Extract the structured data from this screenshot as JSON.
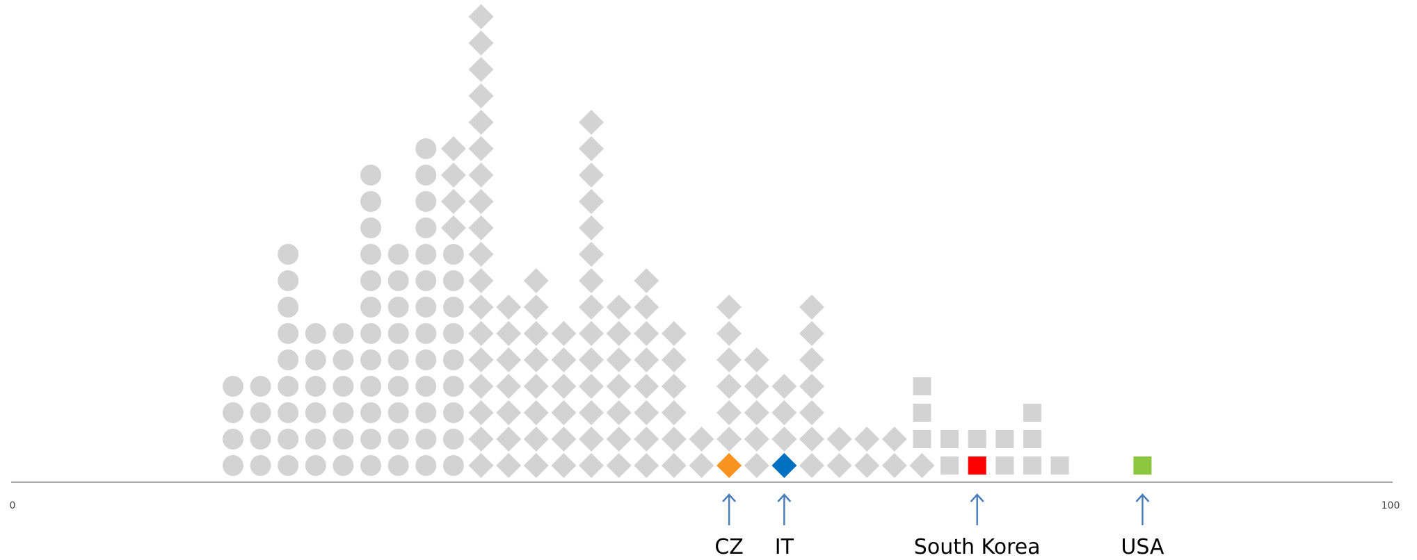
{
  "chart_data": {
    "type": "scatter",
    "subtype": "dot-strip",
    "xlim": [
      0,
      100
    ],
    "x_tick_labels": [
      "0",
      "100"
    ],
    "grid": false,
    "base_color": "#d3d3d3",
    "columns": [
      {
        "x": 16.0,
        "shape": "circle",
        "count": 4
      },
      {
        "x": 18.0,
        "shape": "circle",
        "count": 4
      },
      {
        "x": 20.0,
        "shape": "circle",
        "count": 9
      },
      {
        "x": 22.0,
        "shape": "circle",
        "count": 6
      },
      {
        "x": 24.0,
        "shape": "circle",
        "count": 6
      },
      {
        "x": 26.0,
        "shape": "circle",
        "count": 12
      },
      {
        "x": 28.0,
        "shape": "circle",
        "count": 9
      },
      {
        "x": 30.0,
        "shape": "circle",
        "count": 13
      },
      {
        "x": 32.0,
        "shape": "circle",
        "count": 9
      },
      {
        "x": 32.0,
        "shape": "diamond",
        "count": 4,
        "start": 9
      },
      {
        "x": 34.0,
        "shape": "diamond",
        "count": 18
      },
      {
        "x": 36.0,
        "shape": "diamond",
        "count": 7
      },
      {
        "x": 38.0,
        "shape": "diamond",
        "count": 8
      },
      {
        "x": 40.0,
        "shape": "diamond",
        "count": 6
      },
      {
        "x": 42.0,
        "shape": "diamond",
        "count": 14
      },
      {
        "x": 44.0,
        "shape": "diamond",
        "count": 7
      },
      {
        "x": 46.0,
        "shape": "diamond",
        "count": 8
      },
      {
        "x": 48.0,
        "shape": "diamond",
        "count": 6
      },
      {
        "x": 50.0,
        "shape": "diamond",
        "count": 2
      },
      {
        "x": 52.0,
        "shape": "diamond",
        "count": 7
      },
      {
        "x": 54.0,
        "shape": "diamond",
        "count": 5
      },
      {
        "x": 56.0,
        "shape": "diamond",
        "count": 4
      },
      {
        "x": 58.0,
        "shape": "diamond",
        "count": 7
      },
      {
        "x": 60.0,
        "shape": "diamond",
        "count": 2
      },
      {
        "x": 62.0,
        "shape": "diamond",
        "count": 2
      },
      {
        "x": 64.0,
        "shape": "diamond",
        "count": 2
      },
      {
        "x": 66.0,
        "shape": "diamond",
        "count": 1
      },
      {
        "x": 66.0,
        "shape": "square",
        "count": 3,
        "start": 1
      },
      {
        "x": 68.0,
        "shape": "square",
        "count": 2
      },
      {
        "x": 70.0,
        "shape": "square",
        "count": 2
      },
      {
        "x": 72.0,
        "shape": "square",
        "count": 2
      },
      {
        "x": 74.0,
        "shape": "square",
        "count": 3
      },
      {
        "x": 76.0,
        "shape": "square",
        "count": 1
      }
    ],
    "highlights": [
      {
        "x": 52.0,
        "shape": "diamond",
        "color": "#f7931e"
      },
      {
        "x": 56.0,
        "shape": "diamond",
        "color": "#0070c0"
      },
      {
        "x": 70.0,
        "shape": "square",
        "color": "#ff0000"
      },
      {
        "x": 82.0,
        "shape": "square",
        "color": "#8cc63f"
      }
    ],
    "annotations": [
      {
        "x": 52.0,
        "label": "CZ"
      },
      {
        "x": 56.0,
        "label": "IT"
      },
      {
        "x": 70.0,
        "label": "South Korea"
      },
      {
        "x": 82.0,
        "label": "USA"
      }
    ],
    "arrow_color": "#4a7ebb"
  }
}
